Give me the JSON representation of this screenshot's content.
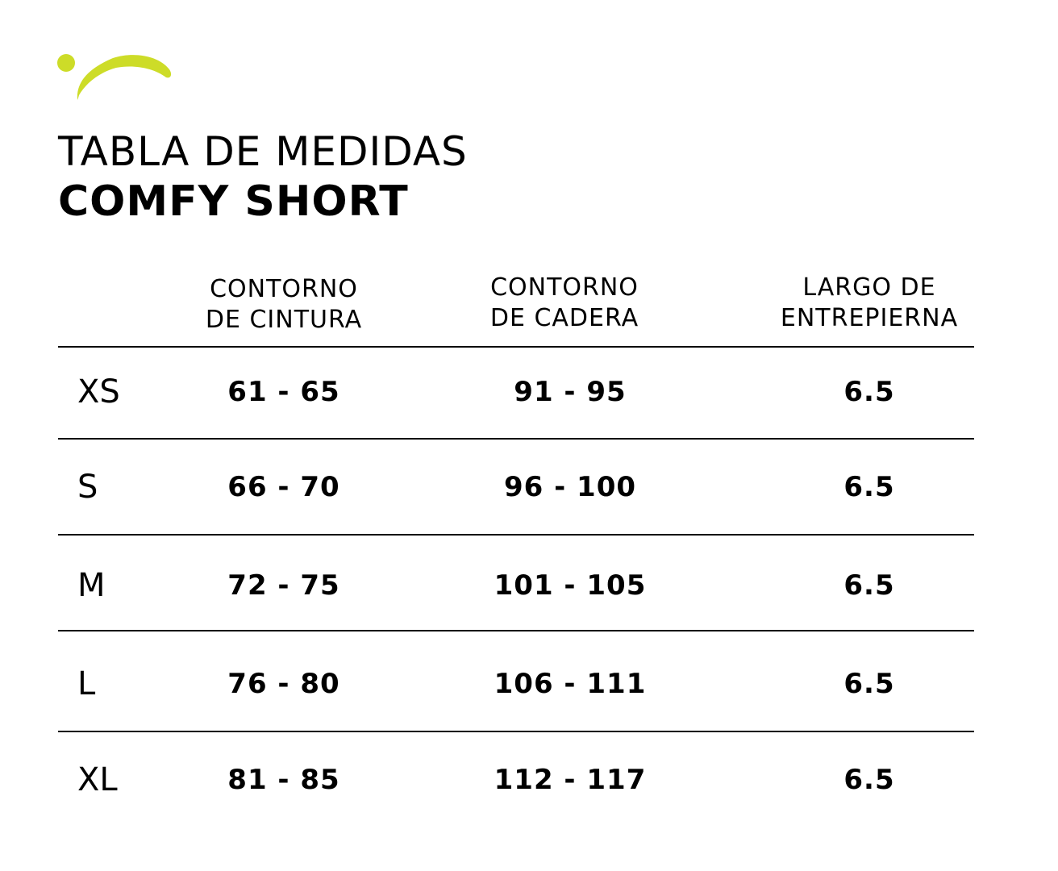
{
  "brand": {
    "accent_color": "#cddc28",
    "logo_icon": "swoosh-logo-icon"
  },
  "title": {
    "line1": "TABLA DE MEDIDAS",
    "line2": "COMFY SHORT"
  },
  "table": {
    "headers": [
      {
        "line1": "CONTORNO",
        "line2": "DE CINTURA"
      },
      {
        "line1": "CONTORNO",
        "line2": "DE CADERA"
      },
      {
        "line1": "LARGO DE",
        "line2": "ENTREPIERNA"
      }
    ],
    "rows": [
      {
        "size": "XS",
        "waist": "61 - 65",
        "hip": "91 - 95",
        "inseam": "6.5"
      },
      {
        "size": "S",
        "waist": "66 - 70",
        "hip": "96 - 100",
        "inseam": "6.5"
      },
      {
        "size": "M",
        "waist": "72 - 75",
        "hip": "101 - 105",
        "inseam": "6.5"
      },
      {
        "size": "L",
        "waist": "76 - 80",
        "hip": "106 - 111",
        "inseam": "6.5"
      },
      {
        "size": "XL",
        "waist": "81 - 85",
        "hip": "112 - 117",
        "inseam": "6.5"
      }
    ]
  }
}
